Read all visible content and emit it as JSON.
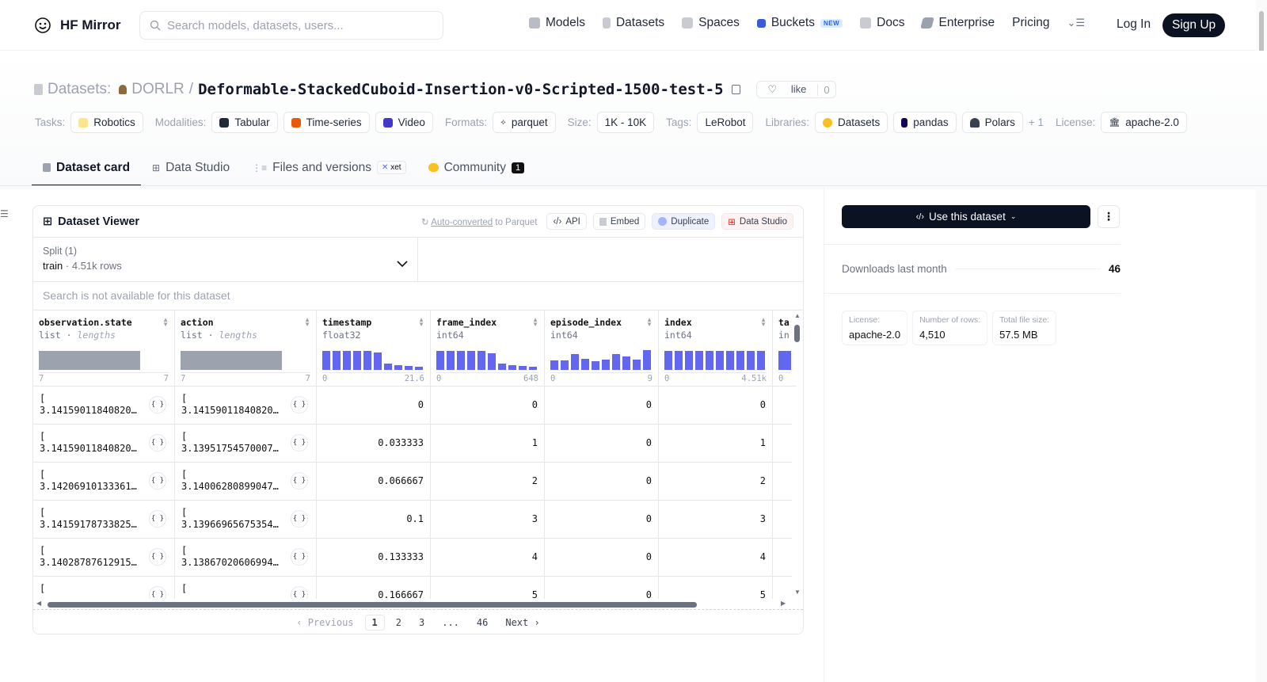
{
  "nav": {
    "brand": "HF Mirror",
    "search_placeholder": "Search models, datasets, users...",
    "links": [
      "Models",
      "Datasets",
      "Spaces",
      "Buckets",
      "Docs",
      "Enterprise",
      "Pricing"
    ],
    "new_badge": "NEW",
    "login": "Log In",
    "signup": "Sign Up"
  },
  "header": {
    "prefix": "Datasets:",
    "owner": "DORLR",
    "repo": "Deformable-StackedCuboid-Insertion-v0-Scripted-1500-test-5",
    "like_label": "like",
    "like_count": "0"
  },
  "tags": {
    "tasks_label": "Tasks:",
    "task": "Robotics",
    "modalities_label": "Modalities:",
    "modalities": [
      "Tabular",
      "Time-series",
      "Video"
    ],
    "formats_label": "Formats:",
    "format": "parquet",
    "size_label": "Size:",
    "size": "1K - 10K",
    "tags_label": "Tags:",
    "tag": "LeRobot",
    "libraries_label": "Libraries:",
    "libraries": [
      "Datasets",
      "pandas",
      "Polars"
    ],
    "more_libraries": "+ 1",
    "license_label": "License:",
    "license": "apache-2.0"
  },
  "tabs": {
    "card": "Dataset card",
    "studio": "Data Studio",
    "files": "Files and versions",
    "xet": "xet",
    "community": "Community",
    "community_count": "1"
  },
  "viewer": {
    "title": "Dataset Viewer",
    "auto_converted": "Auto-converted",
    "to_parquet": " to Parquet",
    "api": "API",
    "embed": "Embed",
    "duplicate": "Duplicate",
    "data_studio": "Data Studio",
    "split_label": "Split (1)",
    "split_value": "train",
    "split_rows": "· 4.51k rows",
    "search_na": "Search is not available for this dataset",
    "columns": [
      {
        "name": "observation.state",
        "type": "list",
        "sub": "lengths",
        "min": "7",
        "max": "7"
      },
      {
        "name": "action",
        "type": "list",
        "sub": "lengths",
        "min": "7",
        "max": "7"
      },
      {
        "name": "timestamp",
        "type": "float32",
        "sub": "",
        "min": "0",
        "max": "21.6"
      },
      {
        "name": "frame_index",
        "type": "int64",
        "sub": "",
        "min": "0",
        "max": "648"
      },
      {
        "name": "episode_index",
        "type": "int64",
        "sub": "",
        "min": "0",
        "max": "9"
      },
      {
        "name": "index",
        "type": "int64",
        "sub": "",
        "min": "0",
        "max": "4.51k"
      },
      {
        "name": "ta",
        "type": "in",
        "sub": "",
        "min": "0",
        "max": ""
      }
    ],
    "rows": [
      {
        "obs": "3.141590118408203…",
        "act": "3.141590118408203…",
        "timestamp": "0",
        "frame_index": "0",
        "episode_index": "0",
        "index": "0"
      },
      {
        "obs": "3.141590118408203…",
        "act": "3.139517545700073…",
        "timestamp": "0.033333",
        "frame_index": "1",
        "episode_index": "0",
        "index": "1"
      },
      {
        "obs": "3.142069101333618…",
        "act": "3.140062808990478…",
        "timestamp": "0.066667",
        "frame_index": "2",
        "episode_index": "0",
        "index": "2"
      },
      {
        "obs": "3.141591787338257…",
        "act": "3.13966965675354,…",
        "timestamp": "0.1",
        "frame_index": "3",
        "episode_index": "0",
        "index": "3"
      },
      {
        "obs": "3.140287876129150…",
        "act": "3.138670206069946…",
        "timestamp": "0.133333",
        "frame_index": "4",
        "episode_index": "0",
        "index": "4"
      },
      {
        "obs": "",
        "act": "",
        "timestamp": "0.166667",
        "frame_index": "5",
        "episode_index": "0",
        "index": "5"
      }
    ],
    "pager": {
      "prev": "‹ Previous",
      "pages": [
        "1",
        "2",
        "3",
        "...",
        "46"
      ],
      "next": "Next ›"
    }
  },
  "side": {
    "use_btn": "Use this dataset",
    "downloads_label": "Downloads last month",
    "downloads": "46",
    "license_k": "License:",
    "license_v": "apache-2.0",
    "rows_k": "Number of rows:",
    "rows_v": "4,510",
    "size_k": "Total file size:",
    "size_v": "57.5 MB"
  }
}
